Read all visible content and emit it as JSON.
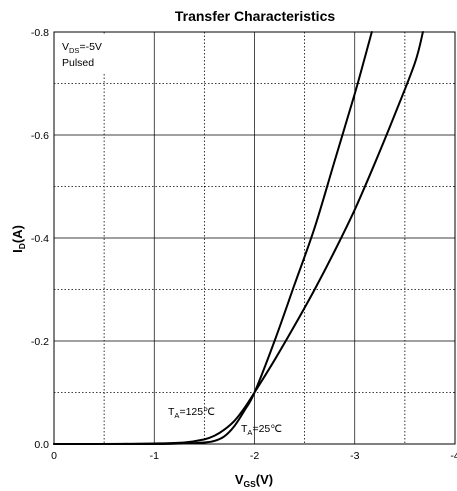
{
  "chart_data": {
    "type": "line",
    "title": "Transfer Characteristics",
    "xlabel": {
      "main": "V",
      "sub": "GS",
      "unit": "(V)"
    },
    "ylabel": {
      "main": "I",
      "sub": "D",
      "unit": "(A)"
    },
    "xlim": [
      0,
      -4
    ],
    "ylim": [
      0.0,
      -0.8
    ],
    "xticks": [
      0,
      -1,
      -2,
      -3,
      -4
    ],
    "xtick_labels": [
      "0",
      "-1",
      "-2",
      "-3",
      "-4"
    ],
    "yticks": [
      0.0,
      -0.2,
      -0.4,
      -0.6,
      -0.8
    ],
    "ytick_labels": [
      "0.0",
      "-0.2",
      "-0.4",
      "-0.6",
      "-0.8"
    ],
    "x_minor_grid": [
      -0.5,
      -1.5,
      -2.5,
      -3.5
    ],
    "y_minor_grid": [
      -0.1,
      -0.3,
      -0.5,
      -0.7
    ],
    "grid": true,
    "conditions": {
      "vds": {
        "main": "V",
        "sub": "DS",
        "value": "=-5V"
      },
      "mode": "Pulsed"
    },
    "series": [
      {
        "name": "TA=125°C",
        "label": {
          "main": "T",
          "sub": "A",
          "value": "=125",
          "unit": "℃"
        },
        "x": [
          0,
          -0.5,
          -1.0,
          -1.3,
          -1.5,
          -1.6,
          -1.7,
          -1.8,
          -1.9,
          -2.0,
          -2.2,
          -2.4,
          -2.6,
          -2.8,
          -3.0,
          -3.2,
          -3.4,
          -3.6,
          -3.68
        ],
        "y": [
          0,
          0,
          -0.001,
          -0.003,
          -0.009,
          -0.016,
          -0.028,
          -0.045,
          -0.07,
          -0.1,
          -0.163,
          -0.23,
          -0.3,
          -0.375,
          -0.455,
          -0.545,
          -0.64,
          -0.74,
          -0.8
        ]
      },
      {
        "name": "TA=25°C",
        "label": {
          "main": "T",
          "sub": "A",
          "value": "=25",
          "unit": "℃"
        },
        "x": [
          0,
          -0.5,
          -1.0,
          -1.3,
          -1.5,
          -1.6,
          -1.7,
          -1.8,
          -1.9,
          -2.0,
          -2.2,
          -2.4,
          -2.6,
          -2.8,
          -3.0,
          -3.1,
          -3.17
        ],
        "y": [
          0,
          0,
          0,
          -0.001,
          -0.003,
          -0.006,
          -0.015,
          -0.035,
          -0.065,
          -0.1,
          -0.2,
          -0.31,
          -0.42,
          -0.55,
          -0.68,
          -0.75,
          -0.8
        ]
      }
    ]
  }
}
